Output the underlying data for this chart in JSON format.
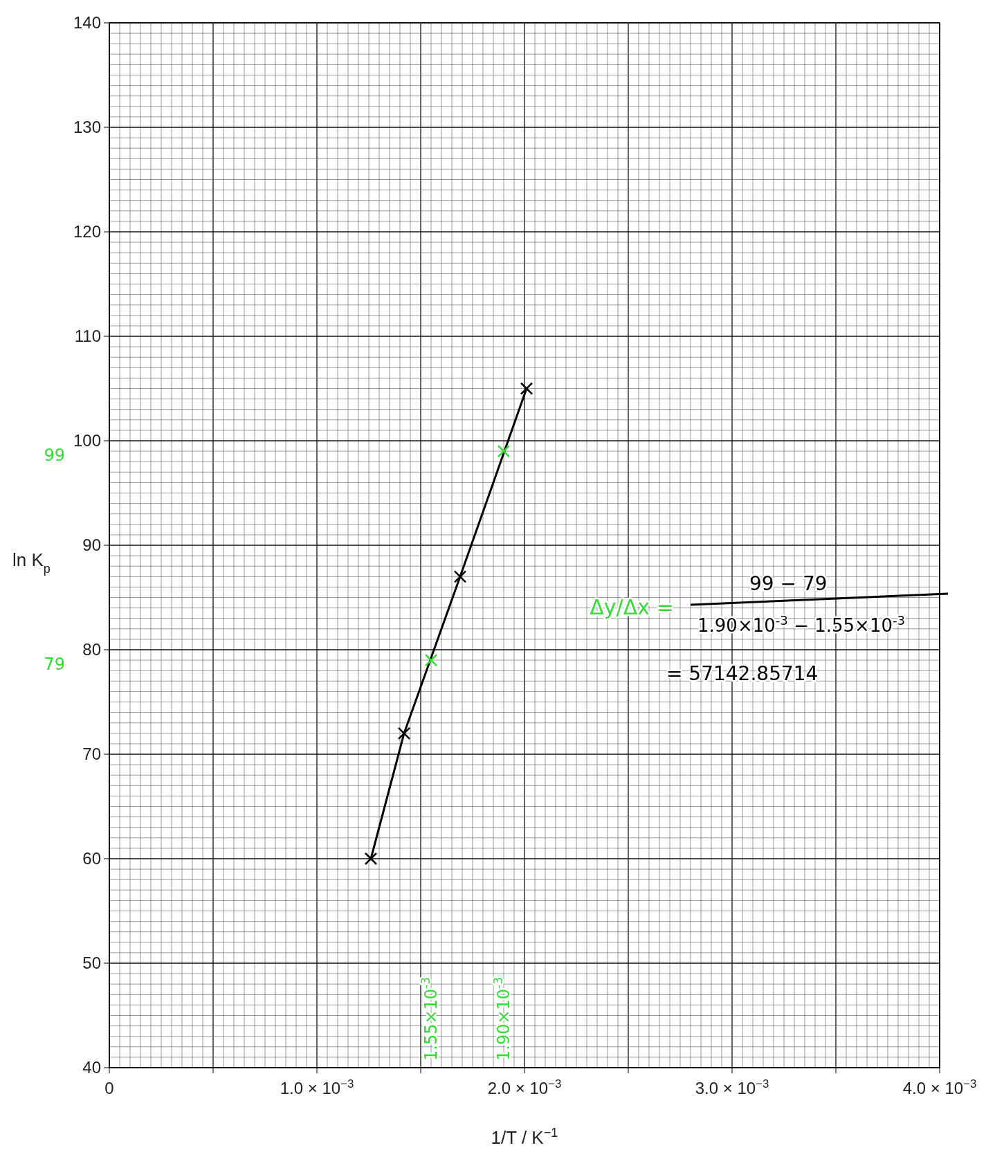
{
  "chart_data": {
    "type": "line",
    "xlabel": "1/T / K$^{−1}$",
    "ylabel": "ln K$_{p}$",
    "xlim": [
      0,
      0.004
    ],
    "ylim": [
      40,
      140
    ],
    "xticks": [
      {
        "value": 0,
        "label": "0"
      },
      {
        "value": 0.0005,
        "label": null
      },
      {
        "value": 0.001,
        "label": "1.0 × 10$^{−3}$"
      },
      {
        "value": 0.0015,
        "label": null
      },
      {
        "value": 0.002,
        "label": "2.0 × 10$^{−3}$"
      },
      {
        "value": 0.0025,
        "label": null
      },
      {
        "value": 0.003,
        "label": "3.0 × 10$^{−3}$"
      },
      {
        "value": 0.0035,
        "label": null
      },
      {
        "value": 0.004,
        "label": "4.0 × 10$^{−3}$"
      }
    ],
    "yticks": [
      40,
      50,
      60,
      70,
      80,
      90,
      100,
      110,
      120,
      130,
      140
    ],
    "grid": true,
    "marker": "cross",
    "series": [
      {
        "color": "#000000",
        "x": [
          0.00126,
          0.00142,
          0.00169,
          0.00201
        ],
        "values": [
          60,
          72,
          87,
          105
        ]
      },
      {
        "type": "scatter",
        "color": "#33dd33",
        "x": [
          0.00155,
          0.0019
        ],
        "values": [
          79,
          99
        ]
      }
    ],
    "annotations": [
      "99",
      "79",
      "1.55×10$^{-3}$",
      "1.90×10$^{-3}$",
      "Δy/Δx =",
      "99 − 79",
      "1.90×10$^{-3}$ − 1.55×10$^{-3}$",
      "= 57142.85714"
    ]
  }
}
